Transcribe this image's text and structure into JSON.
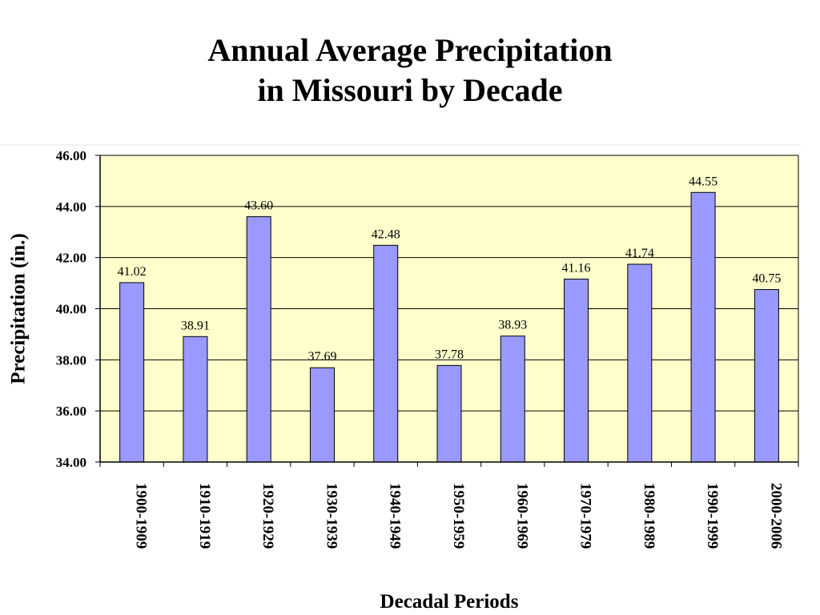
{
  "chart_data": {
    "type": "bar",
    "title": "Annual Average Precipitation",
    "subtitle": "in Missouri by Decade",
    "xlabel": "Decadal Periods",
    "ylabel": "Precipitation (in.)",
    "ylim": [
      34.0,
      46.0
    ],
    "yticks": [
      "34.00",
      "36.00",
      "38.00",
      "40.00",
      "42.00",
      "44.00",
      "46.00"
    ],
    "categories": [
      "1900-1909",
      "1910-1919",
      "1920-1929",
      "1930-1939",
      "1940-1949",
      "1950-1959",
      "1960-1969",
      "1970-1979",
      "1980-1989",
      "1990-1999",
      "2000-2006"
    ],
    "values": [
      41.02,
      38.91,
      43.6,
      37.69,
      42.48,
      37.78,
      38.93,
      41.16,
      41.74,
      44.55,
      40.75
    ],
    "value_labels": [
      "41.02",
      "38.91",
      "43.60",
      "37.69",
      "42.48",
      "37.78",
      "38.93",
      "41.16",
      "41.74",
      "44.55",
      "40.75"
    ],
    "grid": true,
    "legend": "none",
    "colors": {
      "plot_background": "#FFFFCC",
      "bar_fill": "#9999FF",
      "bar_stroke": "#000000",
      "gridline": "#000000"
    }
  }
}
